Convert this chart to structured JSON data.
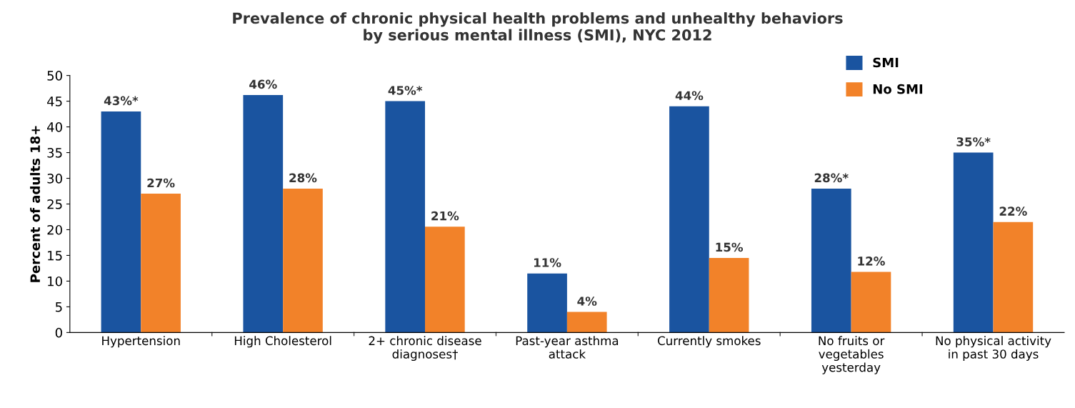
{
  "chart_data": {
    "type": "bar",
    "title": "Prevalence of chronic physical health problems and unhealthy behaviors\nby serious mental illness (SMI), NYC 2012",
    "ylabel": "Percent of adults 18+",
    "categories": [
      "Hypertension",
      "High Cholesterol",
      "2+ chronic disease\ndiagnoses†",
      "Past-year asthma\nattack",
      "Currently smokes",
      "No fruits or\nvegetables\nyesterday",
      "No physical activity\nin past 30 days"
    ],
    "series": [
      {
        "name": "SMI",
        "color": "#1a54a0",
        "values": [
          43,
          46.2,
          45,
          11.5,
          44,
          28,
          35
        ],
        "value_labels": [
          "43%*",
          "46%",
          "45%*",
          "11%",
          "44%",
          "28%*",
          "35%*"
        ]
      },
      {
        "name": "No SMI",
        "color": "#f28229",
        "values": [
          27,
          28,
          20.6,
          4,
          14.5,
          11.8,
          21.5
        ],
        "value_labels": [
          "27%",
          "28%",
          "21%",
          "4%",
          "15%",
          "12%",
          "22%"
        ]
      }
    ],
    "ylim": [
      0,
      50
    ],
    "yticks": [
      0,
      5,
      10,
      15,
      20,
      25,
      30,
      35,
      40,
      45,
      50
    ],
    "grid": false,
    "legend": "top right"
  }
}
